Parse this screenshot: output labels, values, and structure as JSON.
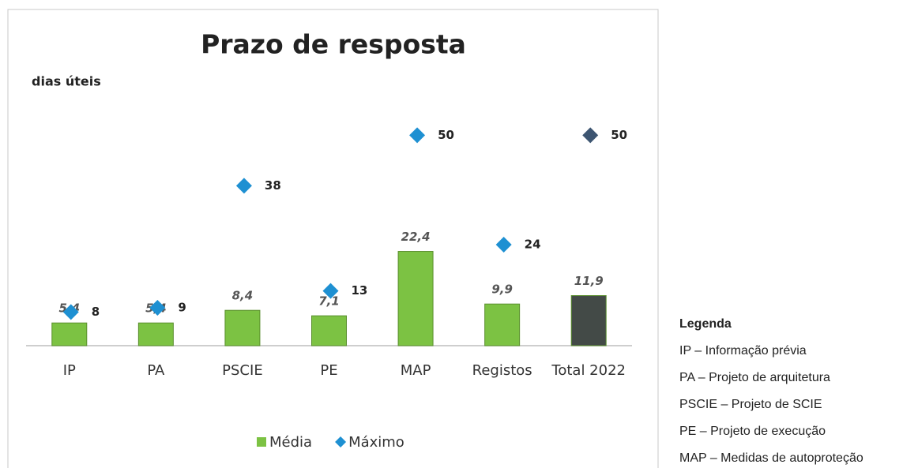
{
  "chart_data": {
    "type": "bar",
    "title": "Prazo de resposta",
    "y_label": "dias úteis",
    "categories": [
      "IP",
      "PA",
      "PSCIE",
      "PE",
      "MAP",
      "Registos",
      "Total 2022"
    ],
    "ylim": [
      0,
      60
    ],
    "series": [
      {
        "name": "Média",
        "type": "bar",
        "color": "#7cc243",
        "colors": [
          "#7cc243",
          "#7cc243",
          "#7cc243",
          "#7cc243",
          "#7cc243",
          "#7cc243",
          "#434a47"
        ],
        "values": [
          5.4,
          5.4,
          8.4,
          7.1,
          22.4,
          9.9,
          11.9
        ],
        "value_labels": [
          "5,4",
          "5,4",
          "8,4",
          "7,1",
          "22,4",
          "9,9",
          "11,9"
        ]
      },
      {
        "name": "Máximo",
        "type": "scatter",
        "color": "#1e90d2",
        "colors": [
          "#1e90d2",
          "#1e90d2",
          "#1e90d2",
          "#1e90d2",
          "#1e90d2",
          "#1e90d2",
          "#3d5571"
        ],
        "values": [
          8,
          9,
          38,
          13,
          50,
          24,
          50
        ]
      }
    ],
    "legend": "bottom"
  },
  "notes": {
    "title": "Legenda",
    "items": [
      "IP – Informação prévia",
      "PA – Projeto de arquitetura",
      "PSCIE – Projeto de SCIE",
      "PE – Projeto de execução",
      "MAP – Medidas de autoproteção"
    ]
  }
}
